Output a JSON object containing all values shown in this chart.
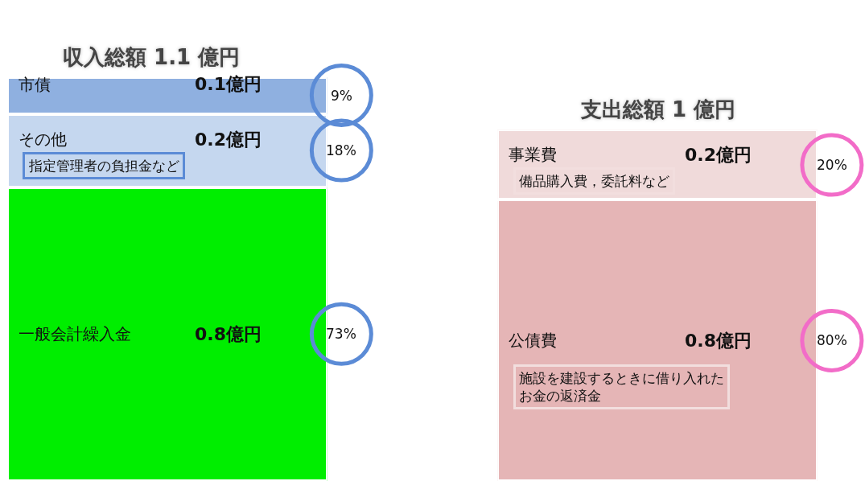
{
  "chart_data": [
    {
      "type": "bar",
      "stacked": true,
      "title": "収入総額 1.1 億円",
      "categories": [
        null
      ],
      "ylim": [
        0,
        1.1
      ],
      "tick_labels": false,
      "series": [
        {
          "name": "一般会計繰入金",
          "color": "#00ee00",
          "values": [
            0.8
          ],
          "value_labels": [
            "0.8億円"
          ]
        },
        {
          "name": "その他",
          "color": "#c5d7ef",
          "values": [
            0.2
          ],
          "value_labels": [
            "0.2億円"
          ]
        },
        {
          "name": "市債",
          "color": "#8fb0e0",
          "values": [
            0.1
          ],
          "value_labels": [
            "0.1億円"
          ]
        }
      ],
      "annotations": [
        "73%",
        "18%",
        "9%",
        "指定管理者の負担金など"
      ]
    },
    {
      "type": "bar",
      "stacked": true,
      "title": "支出総額 1 億円",
      "categories": [
        null
      ],
      "ylim": [
        0,
        1.0
      ],
      "tick_labels": false,
      "series": [
        {
          "name": "公債費",
          "color": "#e5b5b6",
          "values": [
            0.8
          ],
          "value_labels": [
            "0.8億円"
          ]
        },
        {
          "name": "事業費",
          "color": "#f0dada",
          "values": [
            0.2
          ],
          "value_labels": [
            "0.2億円"
          ]
        }
      ],
      "annotations": [
        "80%",
        "20%",
        "備品購入費，委託料など",
        "施設を建設するときに借り入れたお金の返済金"
      ]
    }
  ]
}
